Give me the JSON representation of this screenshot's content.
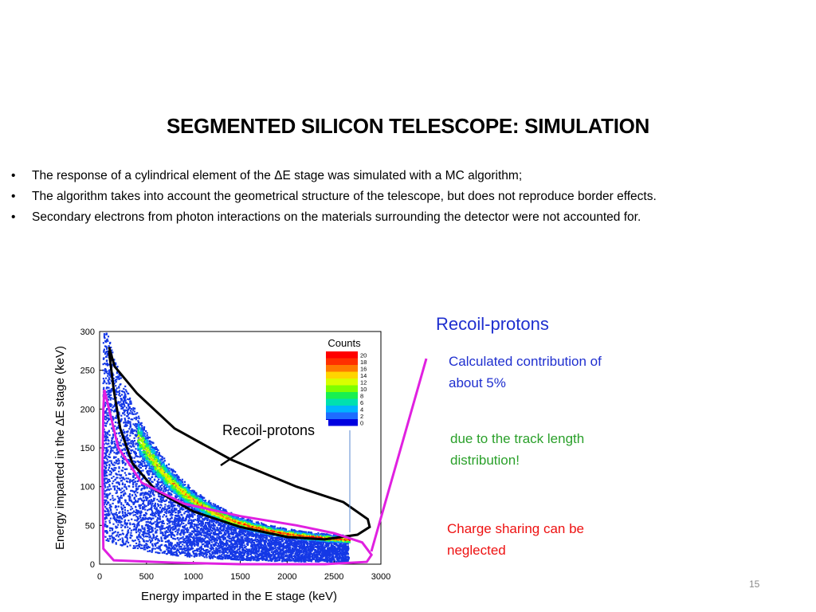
{
  "slide": {
    "title": "SEGMENTED SILICON TELESCOPE: SIMULATION",
    "bullets": [
      "The response of a cylindrical element of the ΔE stage was simulated with a MC algorithm;",
      "The algorithm takes into account the geometrical structure of the telescope, but does not reproduce border effects.",
      "Secondary electrons from photon interactions on the materials surrounding the detector were not accounted for."
    ],
    "bullet_symbol": "•",
    "recoil_heading": "Recoil-protons",
    "calculated_text": "Calculated contribution of about 5%",
    "track_text": "due to the track length distribution!",
    "charge_text": "Charge sharing can be neglected",
    "page_number": "15",
    "colors": {
      "recoil": "#1f2fcf",
      "track": "#2aa02a",
      "charge": "#ee1111",
      "magenta": "#e020e0"
    }
  },
  "chart_data": {
    "type": "heatmap",
    "title": "",
    "xlabel": "Energy imparted in the E stage (keV)",
    "ylabel": "Energy imparted in the ΔE stage (keV)",
    "xlim": [
      0,
      3000
    ],
    "ylim": [
      0,
      300
    ],
    "x_ticks": [
      "0",
      "500",
      "1000",
      "1500",
      "2000",
      "2500",
      "3000"
    ],
    "y_ticks": [
      "0",
      "50",
      "100",
      "150",
      "200",
      "250",
      "300"
    ],
    "colorbar": {
      "title": "Counts",
      "levels": [
        "20",
        "18",
        "16",
        "14",
        "12",
        "10",
        "8",
        "6",
        "4",
        "2",
        "0"
      ],
      "colors": [
        "#ff0000",
        "#ff3000",
        "#ff7a00",
        "#ffd400",
        "#d8ff00",
        "#7dff00",
        "#18f050",
        "#00e0b0",
        "#00b4ff",
        "#1e6cff",
        "#0000e0"
      ]
    },
    "annotation": "Recoil-protons",
    "black_contour": [
      [
        100,
        280
      ],
      [
        160,
        255
      ],
      [
        400,
        220
      ],
      [
        800,
        175
      ],
      [
        1400,
        135
      ],
      [
        2100,
        100
      ],
      [
        2600,
        80
      ],
      [
        2860,
        58
      ],
      [
        2880,
        48
      ],
      [
        2750,
        38
      ],
      [
        2400,
        32
      ],
      [
        2000,
        35
      ],
      [
        1500,
        48
      ],
      [
        1000,
        68
      ],
      [
        600,
        95
      ],
      [
        350,
        130
      ],
      [
        220,
        175
      ],
      [
        150,
        225
      ],
      [
        100,
        275
      ]
    ],
    "magenta_contour": [
      [
        50,
        225
      ],
      [
        100,
        200
      ],
      [
        200,
        150
      ],
      [
        450,
        105
      ],
      [
        900,
        78
      ],
      [
        1500,
        62
      ],
      [
        2100,
        50
      ],
      [
        2500,
        40
      ],
      [
        2800,
        28
      ],
      [
        2900,
        12
      ],
      [
        2850,
        3
      ],
      [
        2400,
        0
      ],
      [
        1500,
        0
      ],
      [
        800,
        2
      ],
      [
        150,
        5
      ],
      [
        40,
        20
      ],
      [
        30,
        120
      ],
      [
        40,
        200
      ],
      [
        50,
        225
      ]
    ]
  }
}
